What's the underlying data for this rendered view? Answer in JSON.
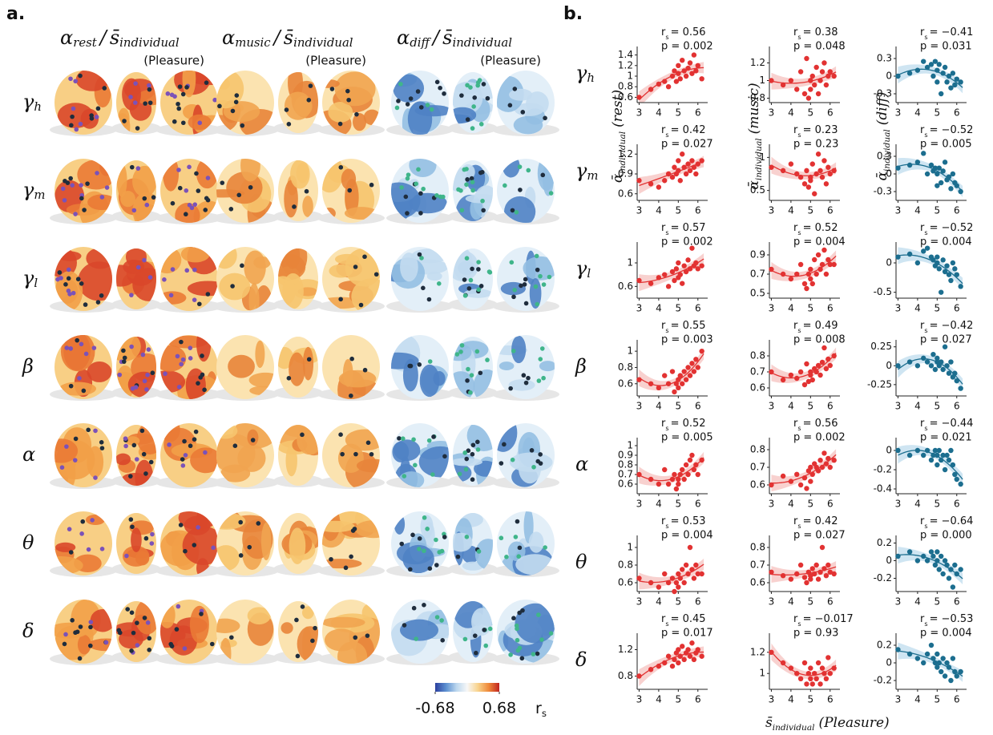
{
  "panel_a": {
    "label": "a.",
    "columns": [
      {
        "symbol": "α",
        "sub": "rest",
        "over": "/",
        "denom": "s̄",
        "denom_sub": "individual",
        "note": "(Pleasure)"
      },
      {
        "symbol": "α",
        "sub": "music",
        "over": "/",
        "denom": "s̄",
        "denom_sub": "individual",
        "note": "(Pleasure)"
      },
      {
        "symbol": "α",
        "sub": "diff",
        "over": "/",
        "denom": "s̄",
        "denom_sub": "individual",
        "note": "(Pleasure)"
      }
    ],
    "row_labels": [
      {
        "symbol": "γ",
        "sub": "h"
      },
      {
        "symbol": "γ",
        "sub": "m"
      },
      {
        "symbol": "γ",
        "sub": "l"
      },
      {
        "symbol": "β"
      },
      {
        "symbol": "α"
      },
      {
        "symbol": "θ"
      },
      {
        "symbol": "δ"
      }
    ],
    "colorbar": {
      "ticks": [
        -0.68,
        0.68
      ],
      "symbol": "r",
      "sub": "s"
    }
  },
  "panel_b": {
    "label": "b.",
    "x": [
      3.0,
      3.6,
      4.0,
      4.3,
      4.5,
      4.7,
      4.8,
      4.9,
      5.0,
      5.0,
      5.1,
      5.2,
      5.3,
      5.4,
      5.5,
      5.6,
      5.7,
      5.8,
      5.9,
      6.0,
      6.2
    ],
    "xlim": [
      2.9,
      6.5
    ],
    "xticks": [
      3,
      4,
      5,
      6
    ],
    "stat_symbol": "r",
    "stat_sub": "s",
    "y_labels": [
      {
        "symbol": "ᾱ",
        "sub": "individual",
        "note": "(rest)"
      },
      {
        "symbol": "ᾱ",
        "sub": "individual",
        "note": "(music)"
      },
      {
        "symbol": "ᾱ",
        "sub": "individual",
        "note": "(diff)"
      }
    ],
    "x_label": {
      "symbol": "s̄",
      "sub": "individual",
      "note": "(Pleasure)"
    },
    "rows": [
      [
        {
          "r_text": "= 0.56",
          "p_text": "p = 0.002",
          "ylim": [
            0.5,
            1.5
          ],
          "yticks": [
            0.6,
            0.8,
            1.0,
            1.2,
            1.4
          ],
          "y": [
            0.6,
            0.75,
            0.85,
            0.9,
            0.8,
            1.0,
            1.1,
            0.9,
            1.2,
            1.05,
            0.95,
            1.3,
            1.1,
            1.0,
            1.15,
            1.25,
            1.05,
            1.4,
            1.1,
            1.2,
            0.95
          ]
        },
        {
          "r_text": "= 0.38",
          "p_text": "p = 0.048",
          "ylim": [
            0.75,
            1.35
          ],
          "yticks": [
            0.8,
            1.0,
            1.2
          ],
          "y": [
            1.0,
            0.95,
            1.0,
            0.9,
            1.1,
            0.85,
            1.25,
            0.8,
            1.0,
            0.9,
            1.05,
            0.95,
            1.15,
            0.85,
            1.0,
            1.1,
            1.2,
            0.95,
            1.05,
            1.1,
            1.05
          ]
        },
        {
          "r_text": "= −0.41",
          "p_text": "p = 0.031",
          "ylim": [
            -0.45,
            0.45
          ],
          "yticks": [
            -0.3,
            0.0,
            0.3
          ],
          "y": [
            0.0,
            0.05,
            0.1,
            0.25,
            0.15,
            0.2,
            0.0,
            0.25,
            -0.1,
            0.1,
            0.2,
            -0.3,
            0.05,
            0.15,
            -0.1,
            0.0,
            -0.2,
            0.05,
            -0.15,
            -0.05,
            -0.1
          ]
        }
      ],
      [
        {
          "r_text": "= 0.42",
          "p_text": "p = 0.027",
          "ylim": [
            0.5,
            1.3
          ],
          "yticks": [
            0.6,
            0.9,
            1.2
          ],
          "y": [
            0.8,
            0.75,
            0.7,
            0.8,
            0.9,
            0.85,
            1.0,
            0.9,
            1.1,
            0.95,
            0.8,
            1.2,
            1.0,
            0.9,
            1.05,
            0.95,
            1.1,
            1.0,
            0.9,
            1.05,
            1.1
          ]
        },
        {
          "r_text": "= 0.23",
          "p_text": "p = 0.23",
          "ylim": [
            0.35,
            1.15
          ],
          "yticks": [
            0.5,
            1.0
          ],
          "y": [
            0.85,
            0.8,
            0.9,
            0.75,
            0.7,
            0.6,
            0.8,
            0.55,
            0.7,
            0.65,
            0.9,
            0.45,
            0.75,
            1.05,
            0.8,
            0.7,
            0.95,
            0.6,
            0.85,
            0.75,
            0.8
          ]
        },
        {
          "r_text": "= −0.52",
          "p_text": "p = 0.005",
          "ylim": [
            -0.45,
            0.45
          ],
          "yticks": [
            -0.3,
            0.0,
            0.3
          ],
          "y": [
            0.1,
            0.15,
            0.2,
            0.35,
            0.0,
            0.15,
            0.05,
            0.1,
            -0.2,
            0.0,
            0.1,
            -0.15,
            0.05,
            0.2,
            -0.1,
            -0.05,
            -0.25,
            0.0,
            -0.15,
            -0.2,
            -0.3
          ]
        }
      ],
      [
        {
          "r_text": "= 0.57",
          "p_text": "p = 0.002",
          "ylim": [
            0.4,
            1.3
          ],
          "yticks": [
            0.6,
            1.0
          ],
          "y": [
            0.7,
            0.65,
            0.75,
            0.8,
            0.6,
            0.85,
            0.7,
            0.9,
            0.75,
            1.0,
            0.8,
            0.65,
            0.95,
            0.85,
            1.05,
            0.9,
            1.25,
            0.95,
            1.0,
            0.9,
            0.95
          ]
        },
        {
          "r_text": "= 0.52",
          "p_text": "p = 0.004",
          "ylim": [
            0.45,
            1.0
          ],
          "yticks": [
            0.5,
            0.7,
            0.9
          ],
          "y": [
            0.75,
            0.7,
            0.65,
            0.7,
            0.8,
            0.6,
            0.55,
            0.7,
            0.65,
            0.75,
            0.6,
            0.85,
            0.7,
            0.9,
            0.75,
            0.8,
            0.95,
            0.7,
            0.85,
            0.8,
            0.8
          ]
        },
        {
          "r_text": "= −0.52",
          "p_text": "p = 0.004",
          "ylim": [
            -0.6,
            0.3
          ],
          "yticks": [
            -0.5,
            0.0
          ],
          "y": [
            0.1,
            0.15,
            0.0,
            0.2,
            0.25,
            0.1,
            0.05,
            -0.05,
            0.1,
            0.0,
            -0.1,
            -0.5,
            0.05,
            -0.15,
            -0.05,
            -0.2,
            -0.3,
            0.0,
            -0.1,
            -0.2,
            -0.4
          ]
        }
      ],
      [
        {
          "r_text": "= 0.55",
          "p_text": "p = 0.003",
          "ylim": [
            0.45,
            1.1
          ],
          "yticks": [
            0.6,
            0.8,
            1.0
          ],
          "y": [
            0.65,
            0.6,
            0.55,
            0.7,
            0.6,
            0.75,
            0.5,
            0.6,
            0.65,
            0.55,
            0.7,
            0.6,
            0.75,
            0.65,
            0.8,
            0.7,
            0.85,
            0.75,
            0.9,
            0.8,
            1.0
          ]
        },
        {
          "r_text": "= 0.49",
          "p_text": "p = 0.008",
          "ylim": [
            0.55,
            0.88
          ],
          "yticks": [
            0.6,
            0.7,
            0.8
          ],
          "y": [
            0.7,
            0.65,
            0.68,
            0.66,
            0.7,
            0.62,
            0.75,
            0.64,
            0.68,
            0.7,
            0.65,
            0.72,
            0.7,
            0.74,
            0.68,
            0.76,
            0.85,
            0.72,
            0.78,
            0.74,
            0.8
          ]
        },
        {
          "r_text": "= −0.42",
          "p_text": "p = 0.027",
          "ylim": [
            -0.4,
            0.3
          ],
          "yticks": [
            -0.25,
            0.0,
            0.25
          ],
          "y": [
            0.0,
            0.05,
            0.0,
            0.1,
            0.05,
            0.0,
            0.15,
            -0.05,
            0.05,
            0.1,
            0.0,
            0.05,
            -0.05,
            0.25,
            0.0,
            -0.1,
            0.05,
            -0.15,
            -0.1,
            -0.2,
            -0.3
          ]
        }
      ],
      [
        {
          "r_text": "= 0.52",
          "p_text": "p = 0.005",
          "ylim": [
            0.5,
            1.05
          ],
          "yticks": [
            0.6,
            0.7,
            0.8,
            0.9,
            1.0
          ],
          "y": [
            0.7,
            0.65,
            0.6,
            0.75,
            0.6,
            0.65,
            0.7,
            0.55,
            0.65,
            0.6,
            0.7,
            0.75,
            0.65,
            0.8,
            0.7,
            0.85,
            0.9,
            0.75,
            0.8,
            0.7,
            0.85
          ]
        },
        {
          "r_text": "= 0.56",
          "p_text": "p = 0.002",
          "ylim": [
            0.55,
            0.85
          ],
          "yticks": [
            0.6,
            0.7,
            0.8
          ],
          "y": [
            0.6,
            0.65,
            0.62,
            0.66,
            0.6,
            0.64,
            0.58,
            0.68,
            0.7,
            0.62,
            0.66,
            0.72,
            0.7,
            0.68,
            0.74,
            0.7,
            0.78,
            0.72,
            0.75,
            0.7,
            0.74
          ]
        },
        {
          "r_text": "= −0.44",
          "p_text": "p = 0.021",
          "ylim": [
            -0.45,
            0.1
          ],
          "yticks": [
            -0.4,
            -0.2,
            0.0
          ],
          "y": [
            0.0,
            -0.05,
            0.0,
            -0.05,
            0.0,
            -0.1,
            -0.05,
            0.0,
            -0.15,
            -0.05,
            0.0,
            -0.1,
            -0.05,
            -0.2,
            -0.05,
            -0.1,
            0.0,
            -0.15,
            -0.25,
            -0.3,
            -0.35
          ]
        }
      ],
      [
        {
          "r_text": "= 0.53",
          "p_text": "p = 0.004",
          "ylim": [
            0.5,
            1.1
          ],
          "yticks": [
            0.6,
            0.8,
            1.0
          ],
          "y": [
            0.65,
            0.6,
            0.55,
            0.7,
            0.6,
            0.65,
            0.5,
            0.6,
            0.7,
            0.55,
            0.65,
            0.75,
            0.6,
            0.8,
            0.7,
            1.0,
            0.75,
            0.65,
            0.8,
            0.7,
            0.7
          ]
        },
        {
          "r_text": "= 0.42",
          "p_text": "p = 0.027",
          "ylim": [
            0.55,
            0.85
          ],
          "yticks": [
            0.6,
            0.7,
            0.8
          ],
          "y": [
            0.66,
            0.64,
            0.62,
            0.65,
            0.7,
            0.63,
            0.6,
            0.66,
            0.64,
            0.62,
            0.68,
            0.65,
            0.7,
            0.62,
            0.66,
            0.8,
            0.68,
            0.64,
            0.7,
            0.66,
            0.65
          ]
        },
        {
          "r_text": "= −0.64",
          "p_text": "p = 0.000",
          "ylim": [
            -0.35,
            0.25
          ],
          "yticks": [
            -0.2,
            0.0,
            0.2
          ],
          "y": [
            0.05,
            0.1,
            0.0,
            0.05,
            0.0,
            0.1,
            0.05,
            -0.05,
            0.1,
            0.0,
            -0.1,
            0.05,
            -0.15,
            0.0,
            -0.05,
            -0.2,
            -0.1,
            -0.3,
            -0.05,
            -0.15,
            -0.1
          ]
        }
      ],
      [
        {
          "r_text": "= 0.45",
          "p_text": "p = 0.017",
          "ylim": [
            0.6,
            1.4
          ],
          "yticks": [
            0.8,
            1.2
          ],
          "y": [
            0.8,
            0.9,
            0.95,
            1.0,
            1.1,
            0.95,
            1.05,
            1.15,
            1.0,
            1.2,
            1.1,
            1.25,
            1.05,
            1.15,
            1.2,
            1.1,
            1.3,
            1.05,
            1.15,
            1.2,
            1.1
          ]
        },
        {
          "r_text": "= −0.017",
          "p_text": "p = 0.93",
          "ylim": [
            0.85,
            1.35
          ],
          "yticks": [
            1.0,
            1.2
          ],
          "y": [
            1.2,
            1.1,
            1.05,
            1.0,
            0.95,
            1.1,
            0.9,
            1.0,
            0.95,
            1.05,
            0.9,
            1.0,
            0.95,
            1.1,
            0.9,
            1.05,
            1.0,
            0.95,
            1.15,
            1.0,
            1.05
          ]
        },
        {
          "r_text": "= −0.53",
          "p_text": "p = 0.004",
          "ylim": [
            -0.3,
            0.3
          ],
          "yticks": [
            -0.2,
            0.0,
            0.2
          ],
          "y": [
            0.15,
            0.1,
            0.05,
            0.0,
            0.1,
            0.2,
            0.05,
            0.0,
            -0.05,
            0.1,
            0.0,
            -0.1,
            0.05,
            -0.15,
            0.0,
            -0.05,
            -0.2,
            0.05,
            -0.1,
            -0.15,
            -0.1
          ]
        }
      ]
    ]
  }
}
